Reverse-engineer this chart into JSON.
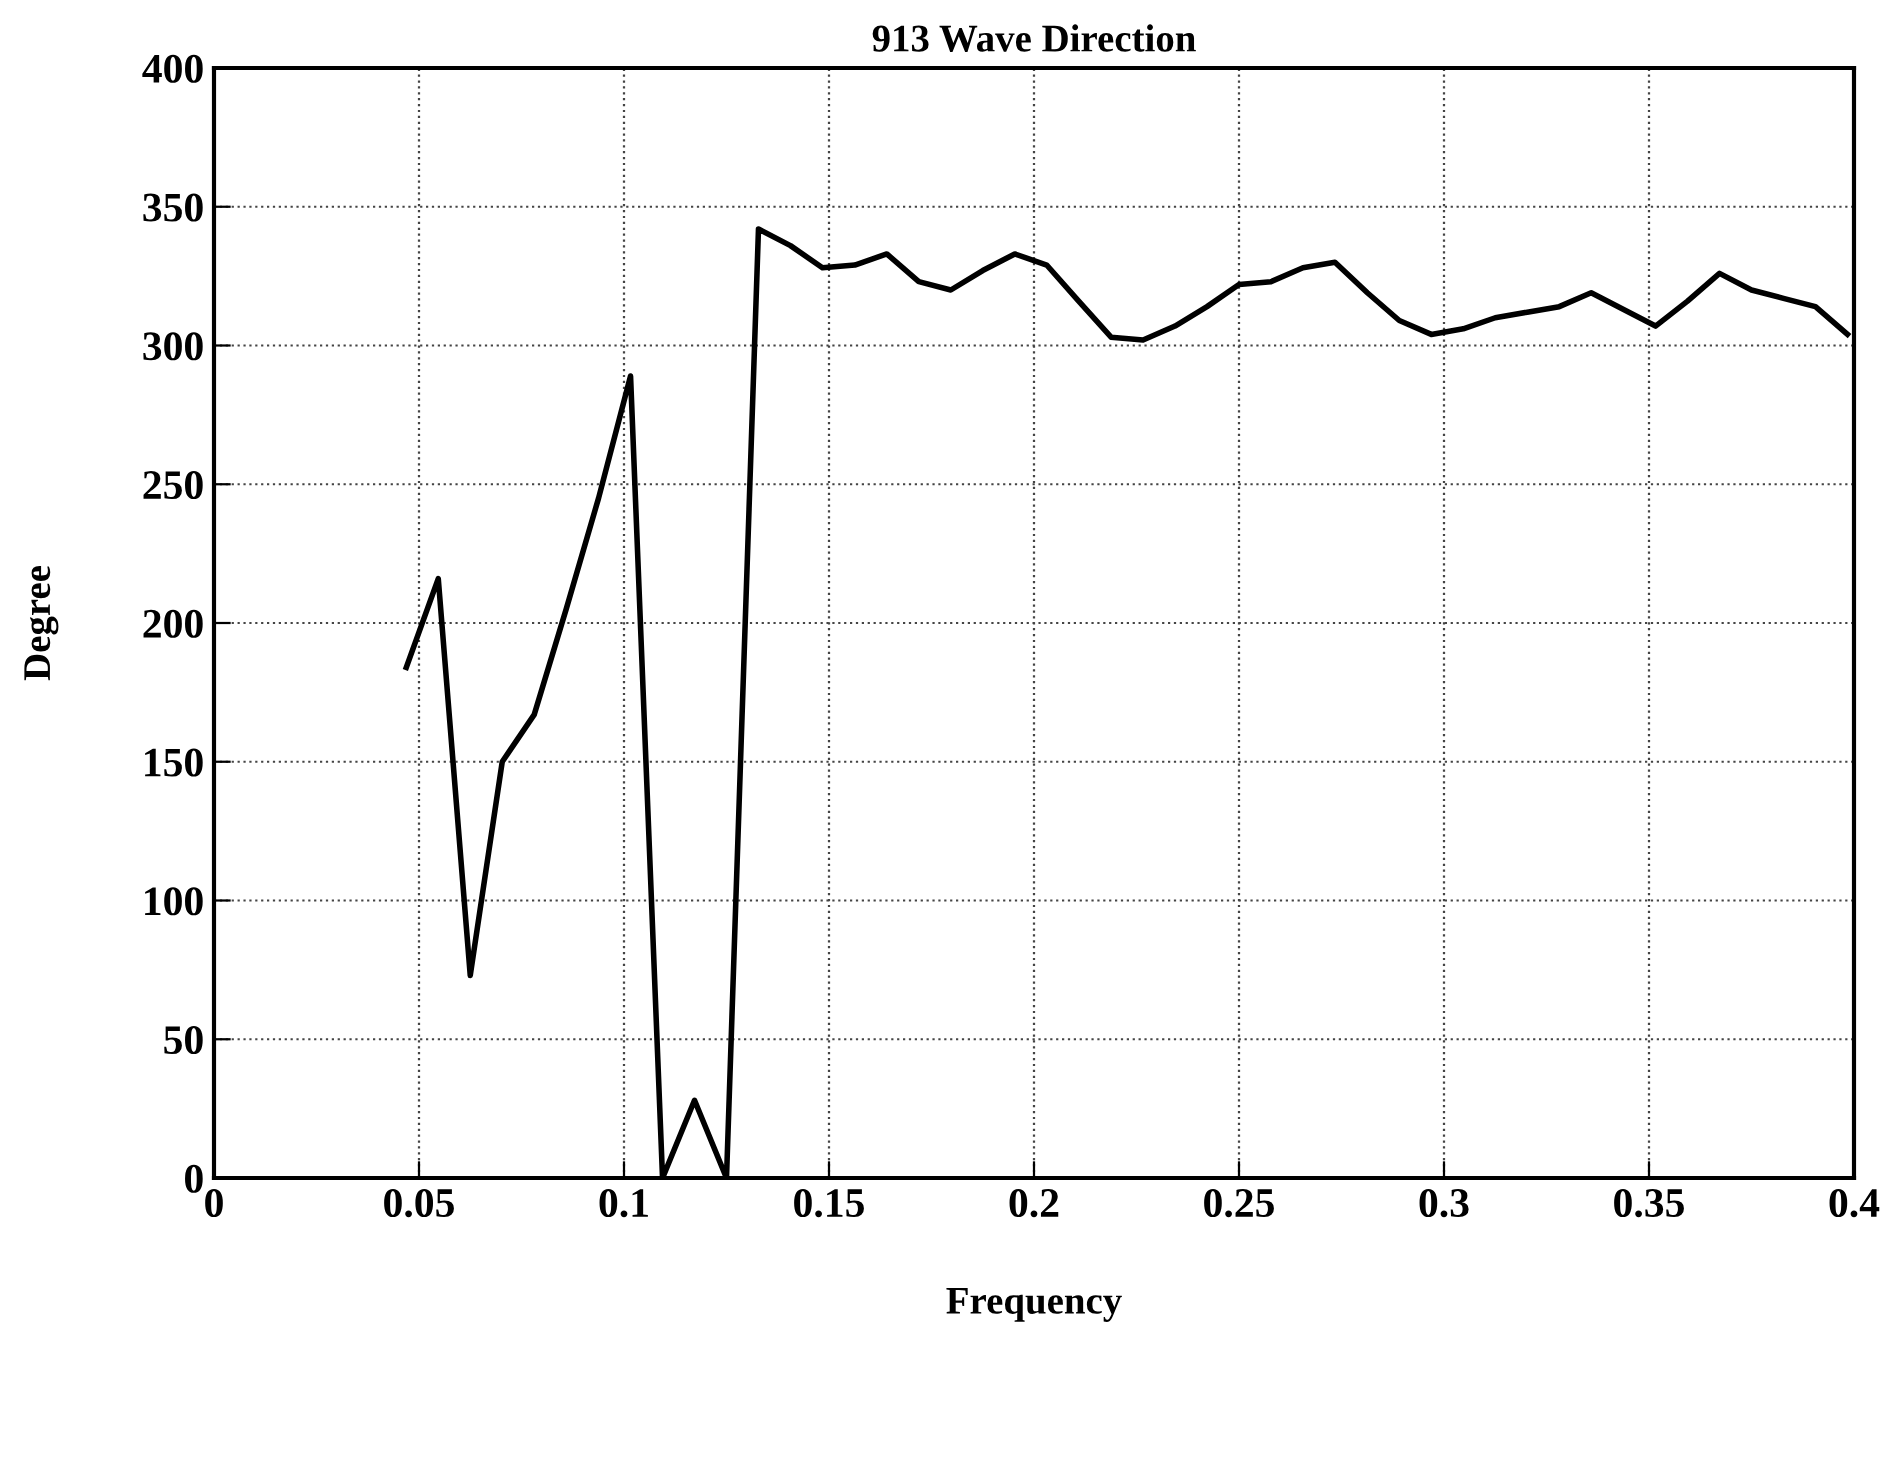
{
  "chart_data": {
    "type": "line",
    "title": "913 Wave Direction",
    "xlabel": "Frequency",
    "ylabel": "Degree",
    "x": [
      0.0469,
      0.0547,
      0.0625,
      0.0703,
      0.0781,
      0.0859,
      0.0938,
      0.1016,
      0.1094,
      0.1172,
      0.125,
      0.1328,
      0.1406,
      0.1484,
      0.1563,
      0.1641,
      0.1719,
      0.1797,
      0.1875,
      0.1953,
      0.2031,
      0.2109,
      0.2188,
      0.2266,
      0.2344,
      0.2422,
      0.25,
      0.2578,
      0.2656,
      0.2734,
      0.2813,
      0.2891,
      0.2969,
      0.3047,
      0.3125,
      0.3203,
      0.3281,
      0.3359,
      0.3438,
      0.3516,
      0.3594,
      0.3672,
      0.375,
      0.3828,
      0.3906,
      0.3984
    ],
    "series": [
      {
        "color": "#000000",
        "values": [
          184,
          216,
          73,
          150,
          167,
          205,
          245,
          289,
          0,
          28,
          0,
          342,
          336,
          328,
          329,
          333,
          323,
          320,
          327,
          333,
          329,
          316,
          303,
          302,
          307,
          314,
          322,
          323,
          328,
          330,
          319,
          309,
          304,
          306,
          310,
          312,
          314,
          319,
          313,
          307,
          316,
          326,
          320,
          317,
          314,
          304
        ]
      }
    ],
    "xlim": [
      0,
      0.4
    ],
    "xticks": [
      0,
      0.05,
      0.1,
      0.15,
      0.2,
      0.25,
      0.3,
      0.35,
      0.4
    ],
    "ylim": [
      0,
      400
    ],
    "yticks": [
      0,
      50,
      100,
      150,
      200,
      250,
      300,
      350,
      400
    ],
    "grid": true,
    "legend": false,
    "marker": "none",
    "line_style": "solid"
  }
}
